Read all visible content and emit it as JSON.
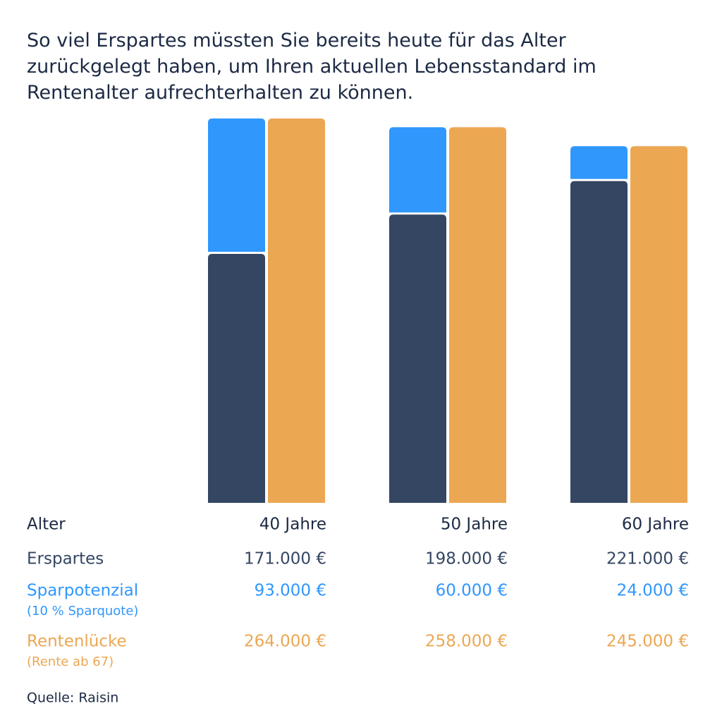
{
  "chart_data": {
    "type": "bar",
    "title": "So viel Erspartes müssten Sie bereits heute für das Alter zurückgelegt haben, um Ihren aktuellen Lebensstandard im Rentenalter aufrechterhalten zu können.",
    "x_label": "Alter",
    "categories": [
      "40 Jahre",
      "50 Jahre",
      "60 Jahre"
    ],
    "series": [
      {
        "name": "Erspartes",
        "color": "#344662",
        "stack": "savings",
        "values": [
          171000,
          198000,
          221000
        ],
        "value_labels": [
          "171.000 €",
          "198.000 €",
          "221.000 €"
        ]
      },
      {
        "name": "Sparpotenzial",
        "subtitle": "(10 % Sparquote)",
        "color": "#3097fd",
        "stack": "savings",
        "values": [
          93000,
          60000,
          24000
        ],
        "value_labels": [
          "93.000 €",
          "60.000 €",
          "24.000 €"
        ]
      },
      {
        "name": "Rentenlücke",
        "subtitle": "(Rente ab 67)",
        "color": "#eca753",
        "stack": "gap",
        "values": [
          264000,
          258000,
          245000
        ],
        "value_labels": [
          "264.000 €",
          "258.000 €",
          "245.000 €"
        ]
      }
    ],
    "ylim": [
      0,
      264000
    ],
    "source": "Quelle: Raisin"
  }
}
